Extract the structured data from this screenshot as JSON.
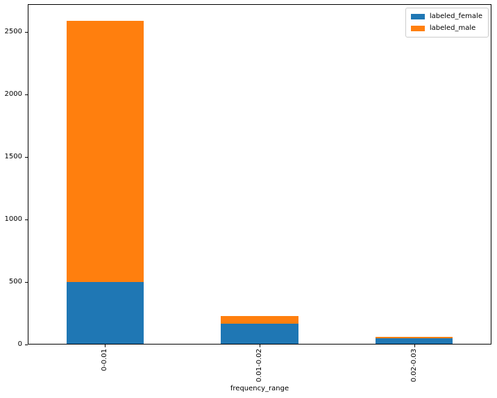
{
  "chart_data": {
    "type": "bar",
    "stacked": true,
    "title": "",
    "xlabel": "frequency_range",
    "ylabel": "",
    "categories": [
      "0-0.01",
      "0.01-0.02",
      "0.02-0.03"
    ],
    "series": [
      {
        "name": "labeled_female",
        "color": "#1f77b4",
        "values": [
          500,
          165,
          48
        ]
      },
      {
        "name": "labeled_male",
        "color": "#ff7f0e",
        "values": [
          2090,
          60,
          14
        ]
      }
    ],
    "totals": [
      2590,
      225,
      62
    ],
    "yticks": [
      0,
      500,
      1000,
      1500,
      2000,
      2500
    ],
    "ylim": [
      0,
      2722
    ],
    "xtick_rotation": 90,
    "grid": false,
    "legend": {
      "position": "upper right",
      "entries": [
        "labeled_female",
        "labeled_male"
      ]
    }
  },
  "style": {
    "spine_color": "#000000",
    "legend_border_color": "#cccccc",
    "background": "#ffffff"
  }
}
